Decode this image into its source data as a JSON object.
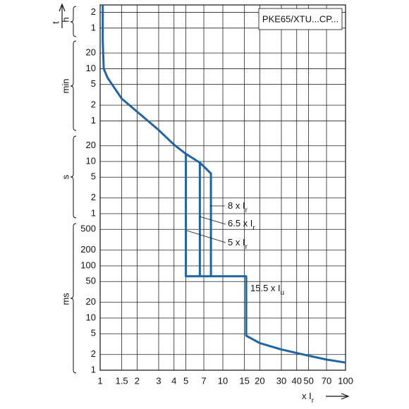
{
  "chart_data": {
    "type": "line",
    "title": "PKE65/XTU...CP...",
    "ylabel": "t",
    "xlabel": {
      "text": "x I",
      "sub": "r"
    },
    "unit_groups": [
      "h",
      "min",
      "s",
      "ms"
    ],
    "xscale": "log",
    "yscale": "log",
    "grid": true,
    "xlim": [
      1,
      100
    ],
    "ylim": [
      0.001,
      10000
    ],
    "xticks": [
      1,
      1.5,
      2,
      3,
      4,
      5,
      7,
      10,
      15,
      20,
      30,
      40,
      50,
      70,
      100
    ],
    "yticks": [
      {
        "value": 7200,
        "label": "2"
      },
      {
        "value": 3600,
        "label": "1"
      },
      {
        "value": 1200,
        "label": "20"
      },
      {
        "value": 600,
        "label": "10"
      },
      {
        "value": 300,
        "label": "5"
      },
      {
        "value": 120,
        "label": "2"
      },
      {
        "value": 60,
        "label": "1"
      },
      20,
      10,
      5,
      2,
      1,
      {
        "value": 0.5,
        "label": "500"
      },
      {
        "value": 0.2,
        "label": "200"
      },
      {
        "value": 0.1,
        "label": "100"
      },
      {
        "value": 0.05,
        "label": "50"
      },
      {
        "value": 0.02,
        "label": "20"
      },
      {
        "value": 0.01,
        "label": "10"
      },
      {
        "value": 0.005,
        "label": "5"
      },
      {
        "value": 0.002,
        "label": "2"
      },
      {
        "value": 0.001,
        "label": "1"
      }
    ],
    "series": [
      {
        "color": "#1f64a5",
        "x": [
          1.05,
          1.05,
          1.07,
          1.15,
          1.25,
          1.5,
          2,
          3,
          4,
          5,
          5,
          15.5,
          15.5,
          20,
          30,
          50,
          70,
          100,
          null,
          5,
          6.5,
          8,
          8,
          null,
          6.5,
          6.5
        ],
        "values": [
          10000,
          2000,
          600,
          400,
          300,
          160,
          90,
          40,
          21,
          14,
          0.063,
          0.063,
          0.0046,
          0.0033,
          0.0025,
          0.0019,
          0.0016,
          0.0014,
          null,
          14,
          9.5,
          5.9,
          0.063,
          null,
          9.5,
          0.063
        ]
      }
    ],
    "annotations": [
      {
        "text": "8 x I",
        "sub": "r"
      },
      {
        "text": "6.5 x I",
        "sub": "r"
      },
      {
        "text": "5 x I",
        "sub": "r"
      },
      {
        "text": "15.5 x I",
        "sub": "u"
      }
    ]
  }
}
